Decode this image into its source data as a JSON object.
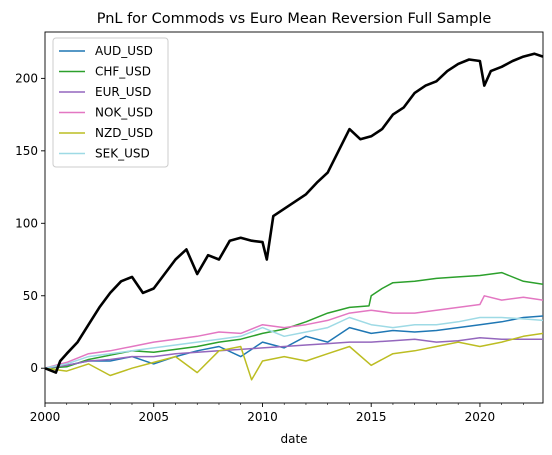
{
  "chart_data": {
    "type": "line",
    "title": "PnL for Commods vs Euro Mean Reversion Full Sample",
    "xlabel": "date",
    "ylabel": "",
    "xlim": [
      2000,
      2022.9
    ],
    "ylim": [
      -24,
      232
    ],
    "x_ticks": [
      2000,
      2005,
      2010,
      2015,
      2020
    ],
    "y_ticks": [
      0,
      50,
      100,
      150,
      200
    ],
    "grid": false,
    "legend": {
      "position": "top-left"
    },
    "series": [
      {
        "name": "",
        "color": "#000000",
        "style": "thick",
        "points": [
          [
            2000,
            0
          ],
          [
            2000.5,
            -3
          ],
          [
            2000.7,
            5
          ],
          [
            2001,
            10
          ],
          [
            2001.5,
            18
          ],
          [
            2002,
            30
          ],
          [
            2002.5,
            42
          ],
          [
            2003,
            52
          ],
          [
            2003.5,
            60
          ],
          [
            2004,
            63
          ],
          [
            2004.5,
            52
          ],
          [
            2005,
            55
          ],
          [
            2005.5,
            65
          ],
          [
            2006,
            75
          ],
          [
            2006.5,
            82
          ],
          [
            2007,
            65
          ],
          [
            2007.5,
            78
          ],
          [
            2008,
            75
          ],
          [
            2008.5,
            88
          ],
          [
            2009,
            90
          ],
          [
            2009.5,
            88
          ],
          [
            2010,
            87
          ],
          [
            2010.2,
            75
          ],
          [
            2010.5,
            105
          ],
          [
            2011,
            110
          ],
          [
            2011.5,
            115
          ],
          [
            2012,
            120
          ],
          [
            2012.5,
            128
          ],
          [
            2013,
            135
          ],
          [
            2013.5,
            150
          ],
          [
            2014,
            165
          ],
          [
            2014.5,
            158
          ],
          [
            2015,
            160
          ],
          [
            2015.5,
            165
          ],
          [
            2016,
            175
          ],
          [
            2016.5,
            180
          ],
          [
            2017,
            190
          ],
          [
            2017.5,
            195
          ],
          [
            2018,
            198
          ],
          [
            2018.5,
            205
          ],
          [
            2019,
            210
          ],
          [
            2019.5,
            213
          ],
          [
            2020,
            212
          ],
          [
            2020.2,
            195
          ],
          [
            2020.5,
            205
          ],
          [
            2021,
            208
          ],
          [
            2021.5,
            212
          ],
          [
            2022,
            215
          ],
          [
            2022.5,
            217
          ],
          [
            2022.9,
            215
          ]
        ]
      },
      {
        "name": "AUD_USD",
        "color": "#1f77b4",
        "points": [
          [
            2000,
            0
          ],
          [
            2001,
            2
          ],
          [
            2002,
            5
          ],
          [
            2003,
            5
          ],
          [
            2004,
            8
          ],
          [
            2005,
            3
          ],
          [
            2006,
            8
          ],
          [
            2007,
            12
          ],
          [
            2008,
            15
          ],
          [
            2009,
            8
          ],
          [
            2010,
            18
          ],
          [
            2011,
            14
          ],
          [
            2012,
            22
          ],
          [
            2013,
            18
          ],
          [
            2014,
            28
          ],
          [
            2015,
            24
          ],
          [
            2016,
            26
          ],
          [
            2017,
            25
          ],
          [
            2018,
            26
          ],
          [
            2019,
            28
          ],
          [
            2020,
            30
          ],
          [
            2021,
            32
          ],
          [
            2022,
            35
          ],
          [
            2022.9,
            36
          ]
        ]
      },
      {
        "name": "CHF_USD",
        "color": "#2ca02c",
        "points": [
          [
            2000,
            0
          ],
          [
            2001,
            1
          ],
          [
            2002,
            6
          ],
          [
            2003,
            9
          ],
          [
            2004,
            12
          ],
          [
            2005,
            11
          ],
          [
            2006,
            13
          ],
          [
            2007,
            15
          ],
          [
            2008,
            18
          ],
          [
            2009,
            20
          ],
          [
            2010,
            24
          ],
          [
            2011,
            27
          ],
          [
            2012,
            32
          ],
          [
            2013,
            38
          ],
          [
            2014,
            42
          ],
          [
            2014.9,
            43
          ],
          [
            2015,
            50
          ],
          [
            2015.5,
            55
          ],
          [
            2016,
            59
          ],
          [
            2017,
            60
          ],
          [
            2018,
            62
          ],
          [
            2019,
            63
          ],
          [
            2020,
            64
          ],
          [
            2021,
            66
          ],
          [
            2022,
            60
          ],
          [
            2022.9,
            58
          ]
        ]
      },
      {
        "name": "EUR_USD",
        "color": "#9467bd",
        "points": [
          [
            2000,
            0
          ],
          [
            2001,
            2
          ],
          [
            2002,
            5
          ],
          [
            2003,
            6
          ],
          [
            2004,
            8
          ],
          [
            2005,
            8
          ],
          [
            2006,
            10
          ],
          [
            2007,
            11
          ],
          [
            2008,
            12
          ],
          [
            2009,
            13
          ],
          [
            2010,
            14
          ],
          [
            2011,
            15
          ],
          [
            2012,
            16
          ],
          [
            2013,
            17
          ],
          [
            2014,
            18
          ],
          [
            2015,
            18
          ],
          [
            2016,
            19
          ],
          [
            2017,
            20
          ],
          [
            2018,
            18
          ],
          [
            2019,
            19
          ],
          [
            2020,
            21
          ],
          [
            2021,
            20
          ],
          [
            2022,
            20
          ],
          [
            2022.9,
            20
          ]
        ]
      },
      {
        "name": "NOK_USD",
        "color": "#e377c2",
        "points": [
          [
            2000,
            0
          ],
          [
            2001,
            4
          ],
          [
            2002,
            10
          ],
          [
            2003,
            12
          ],
          [
            2004,
            15
          ],
          [
            2005,
            18
          ],
          [
            2006,
            20
          ],
          [
            2007,
            22
          ],
          [
            2008,
            25
          ],
          [
            2009,
            24
          ],
          [
            2010,
            30
          ],
          [
            2011,
            28
          ],
          [
            2012,
            30
          ],
          [
            2013,
            33
          ],
          [
            2014,
            38
          ],
          [
            2015,
            40
          ],
          [
            2016,
            38
          ],
          [
            2017,
            38
          ],
          [
            2018,
            40
          ],
          [
            2019,
            42
          ],
          [
            2020,
            44
          ],
          [
            2020.2,
            50
          ],
          [
            2021,
            47
          ],
          [
            2022,
            49
          ],
          [
            2022.9,
            47
          ]
        ]
      },
      {
        "name": "NZD_USD",
        "color": "#bcbd22",
        "points": [
          [
            2000,
            0
          ],
          [
            2001,
            -2
          ],
          [
            2002,
            3
          ],
          [
            2003,
            -5
          ],
          [
            2004,
            0
          ],
          [
            2005,
            4
          ],
          [
            2006,
            8
          ],
          [
            2007,
            -3
          ],
          [
            2008,
            12
          ],
          [
            2009,
            15
          ],
          [
            2009.5,
            -8
          ],
          [
            2010,
            5
          ],
          [
            2011,
            8
          ],
          [
            2012,
            5
          ],
          [
            2013,
            10
          ],
          [
            2014,
            15
          ],
          [
            2015,
            2
          ],
          [
            2016,
            10
          ],
          [
            2017,
            12
          ],
          [
            2018,
            15
          ],
          [
            2019,
            18
          ],
          [
            2020,
            15
          ],
          [
            2021,
            18
          ],
          [
            2022,
            22
          ],
          [
            2022.9,
            24
          ]
        ]
      },
      {
        "name": "SEK_USD",
        "color": "#9edae5",
        "points": [
          [
            2000,
            0
          ],
          [
            2001,
            3
          ],
          [
            2002,
            8
          ],
          [
            2003,
            10
          ],
          [
            2004,
            12
          ],
          [
            2005,
            14
          ],
          [
            2006,
            16
          ],
          [
            2007,
            18
          ],
          [
            2008,
            20
          ],
          [
            2009,
            22
          ],
          [
            2010,
            28
          ],
          [
            2011,
            22
          ],
          [
            2012,
            25
          ],
          [
            2013,
            28
          ],
          [
            2014,
            35
          ],
          [
            2015,
            30
          ],
          [
            2016,
            28
          ],
          [
            2017,
            30
          ],
          [
            2018,
            30
          ],
          [
            2019,
            32
          ],
          [
            2020,
            35
          ],
          [
            2021,
            35
          ],
          [
            2022,
            34
          ],
          [
            2022.9,
            33
          ]
        ]
      }
    ]
  }
}
